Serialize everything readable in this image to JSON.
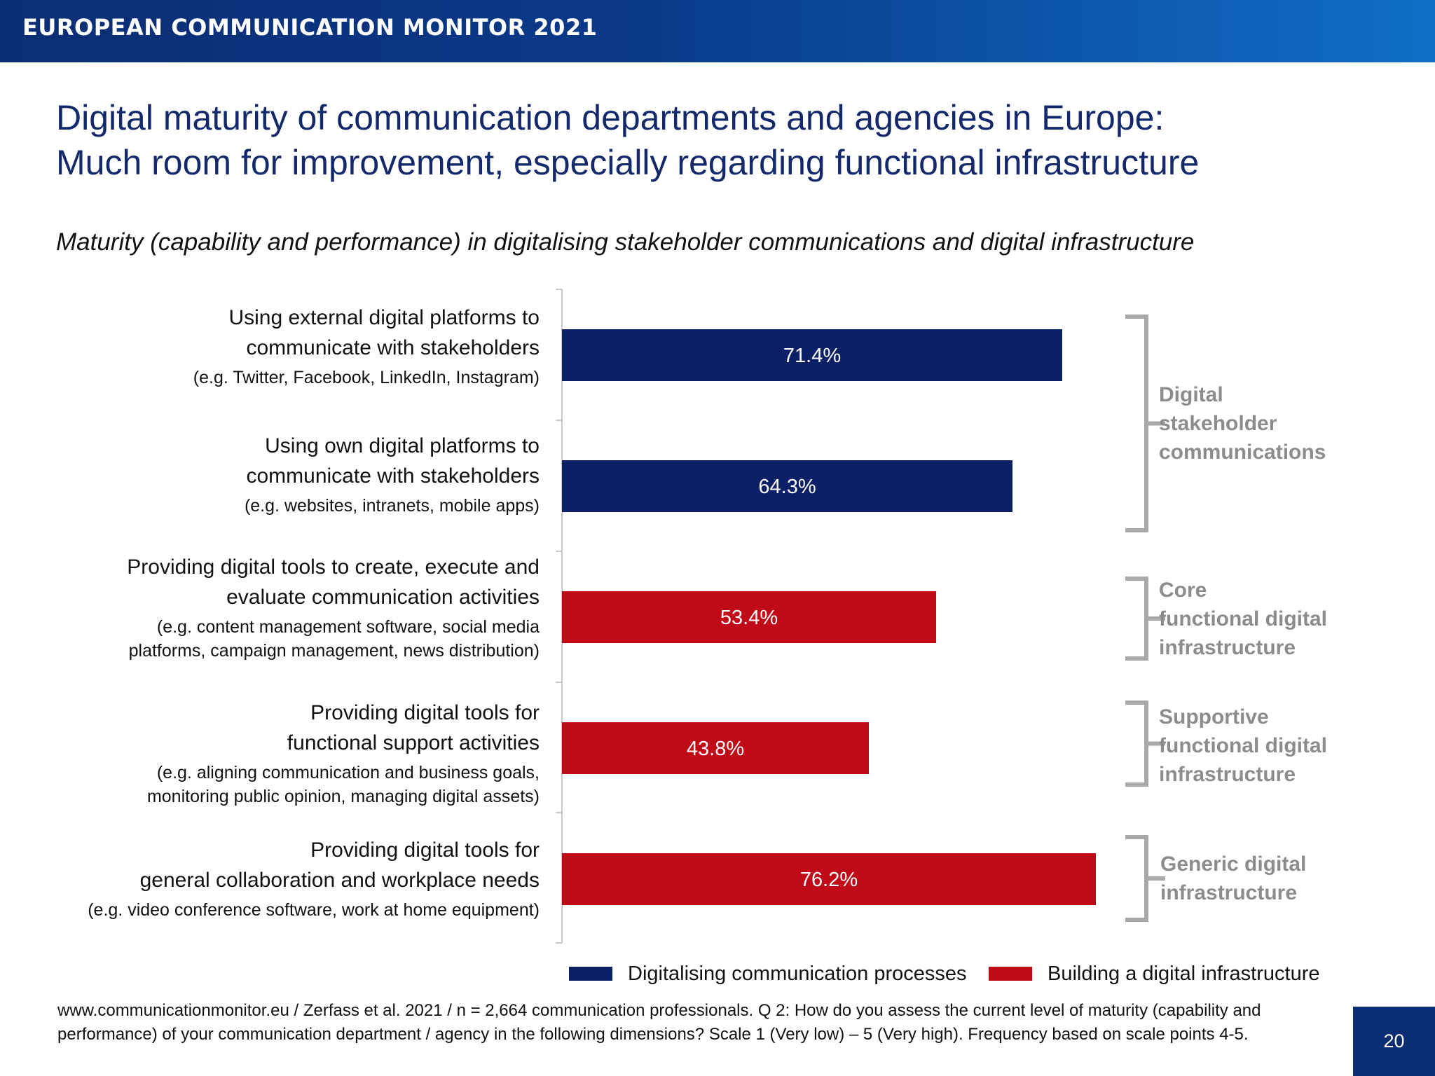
{
  "header": {
    "title": "EUROPEAN COMMUNICATION MONITOR 2021"
  },
  "slide": {
    "title_line1": "Digital maturity of communication departments and agencies in Europe:",
    "title_line2": "Much room for improvement, especially regarding functional infrastructure",
    "page_number": "20"
  },
  "chart_data": {
    "type": "bar",
    "orientation": "horizontal",
    "title": "Maturity (capability and performance) in digitalising stakeholder communications and digital infrastructure",
    "categories": [
      {
        "label": "Using external digital platforms to\ncommunicate with stakeholders",
        "example": "(e.g. Twitter, Facebook, LinkedIn, Instagram)"
      },
      {
        "label": "Using own digital platforms to\ncommunicate with stakeholders",
        "example": "(e.g. websites, intranets, mobile apps)"
      },
      {
        "label": "Providing digital tools to create, execute and\nevaluate communication activities",
        "example": "(e.g. content management software, social media\nplatforms, campaign management, news distribution)"
      },
      {
        "label": "Providing digital tools for\nfunctional support activities",
        "example": "(e.g. aligning communication and business goals,\nmonitoring public opinion, managing digital assets)"
      },
      {
        "label": "Providing digital tools for\ngeneral collaboration and workplace needs",
        "example": "(e.g. video conference software, work at home equipment)"
      }
    ],
    "values": [
      71.4,
      64.3,
      53.4,
      43.8,
      76.2
    ],
    "value_labels": [
      "71.4%",
      "64.3%",
      "53.4%",
      "43.8%",
      "76.2%"
    ],
    "series_index": [
      0,
      0,
      1,
      1,
      1
    ],
    "series": [
      {
        "name": "Digitalising communication processes",
        "color": "#0b2066"
      },
      {
        "name": "Building a digital infrastructure",
        "color": "#c00a17"
      }
    ],
    "xlim": [
      0,
      100
    ],
    "legend_position": "bottom",
    "groups": [
      {
        "label": "Digital\nstakeholder\ncommunications",
        "rows": [
          0,
          1
        ]
      },
      {
        "label": "Core\nfunctional digital\ninfrastructure",
        "rows": [
          2,
          2
        ]
      },
      {
        "label": "Supportive\nfunctional digital\ninfrastructure",
        "rows": [
          3,
          3
        ]
      },
      {
        "label": "Generic digital\ninfrastructure",
        "rows": [
          4,
          4
        ]
      }
    ]
  },
  "footnote": "www.communicationmonitor.eu / Zerfass et al. 2021 / n = 2,664 communication professionals. Q 2: How do you assess the current level of maturity (capability and performance) of your communication department / agency in the following dimensions? Scale 1 (Very low) – 5 (Very high). Frequency based on scale points 4-5."
}
